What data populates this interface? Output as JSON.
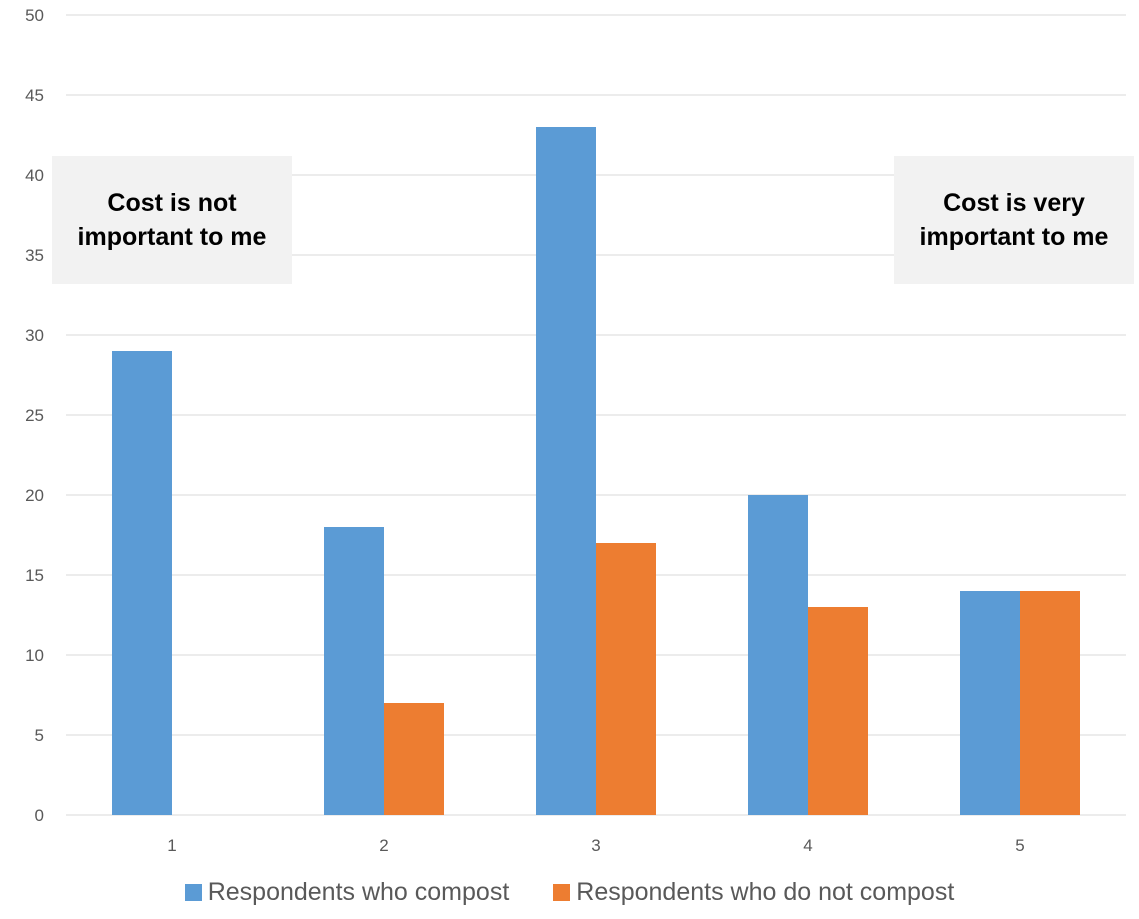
{
  "colors": {
    "compost": "#5b9bd5",
    "no_compost": "#ed7d31",
    "grid": "#d9d9d9",
    "tick_text": "#595959",
    "callout_bg": "#f2f2f2"
  },
  "callouts": {
    "left": "Cost is not important to me",
    "right": "Cost is very important to me"
  },
  "chart_data": {
    "type": "bar",
    "categories": [
      "1",
      "2",
      "3",
      "4",
      "5"
    ],
    "series": [
      {
        "name": "Respondents who compost",
        "values": [
          29,
          18,
          43,
          20,
          14
        ]
      },
      {
        "name": "Respondents who do not compost",
        "values": [
          0,
          7,
          17,
          13,
          14
        ]
      }
    ],
    "ylim": [
      0,
      50
    ],
    "yticks": [
      0,
      5,
      10,
      15,
      20,
      25,
      30,
      35,
      40,
      45,
      50
    ],
    "grid": true,
    "legend_position": "bottom"
  }
}
